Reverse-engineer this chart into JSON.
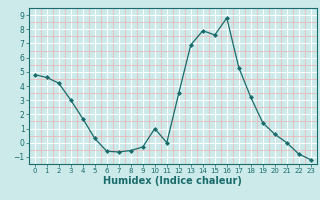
{
  "x": [
    0,
    1,
    2,
    3,
    4,
    5,
    6,
    7,
    8,
    9,
    10,
    11,
    12,
    13,
    14,
    15,
    16,
    17,
    18,
    19,
    20,
    21,
    22,
    23
  ],
  "y": [
    4.8,
    4.6,
    4.2,
    3.0,
    1.7,
    0.3,
    -0.6,
    -0.65,
    -0.55,
    -0.3,
    1.0,
    0.0,
    3.5,
    6.9,
    7.9,
    7.6,
    8.8,
    5.3,
    3.2,
    1.4,
    0.6,
    0.0,
    -0.8,
    -1.2
  ],
  "line_color": "#1a6b6b",
  "marker": "D",
  "marker_size": 2,
  "bg_color": "#cceaea",
  "grid_major_color": "#ffffff",
  "grid_minor_color": "#f0b0b0",
  "xlabel": "Humidex (Indice chaleur)",
  "ylim": [
    -1.5,
    9.5
  ],
  "xlim": [
    -0.5,
    23.5
  ],
  "yticks": [
    -1,
    0,
    1,
    2,
    3,
    4,
    5,
    6,
    7,
    8,
    9
  ],
  "xticks": [
    0,
    1,
    2,
    3,
    4,
    5,
    6,
    7,
    8,
    9,
    10,
    11,
    12,
    13,
    14,
    15,
    16,
    17,
    18,
    19,
    20,
    21,
    22,
    23
  ],
  "tick_fontsize": 5.5,
  "label_fontsize": 7,
  "label_color": "#1a6b6b",
  "tick_color": "#1a6b6b",
  "spine_color": "#1a6b6b"
}
